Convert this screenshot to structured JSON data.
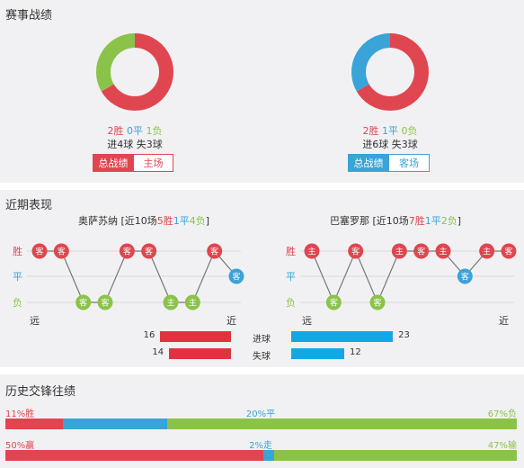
{
  "colors": {
    "win": "#e04650",
    "draw": "#3aa3d8",
    "loss": "#8bc34a",
    "panel": "#f1f1f3"
  },
  "season": {
    "title": "赛事战绩",
    "left": {
      "record": {
        "win": "2胜",
        "draw": "0平",
        "loss": "1负"
      },
      "goals": "进4球 失3球",
      "tabs": [
        {
          "label": "总战绩",
          "active": true
        },
        {
          "label": "主场",
          "active": false
        }
      ],
      "donut": {
        "win": 2,
        "draw": 0,
        "loss": 1
      }
    },
    "right": {
      "record": {
        "win": "2胜",
        "draw": "1平",
        "loss": "0负"
      },
      "goals": "进6球 失3球",
      "tabs": [
        {
          "label": "总战绩",
          "active": true
        },
        {
          "label": "客场",
          "active": false
        }
      ],
      "donut": {
        "win": 2,
        "draw": 1,
        "loss": 0
      }
    }
  },
  "recent": {
    "title": "近期表现",
    "left": {
      "name": "奥萨苏纳",
      "prefix": "[近10场",
      "w": "5胜",
      "d": "1平",
      "l": "4负",
      "suffix": "]",
      "results": [
        [
          "W",
          "客"
        ],
        [
          "W",
          "客"
        ],
        [
          "L",
          "客"
        ],
        [
          "L",
          "客"
        ],
        [
          "W",
          "客"
        ],
        [
          "W",
          "客"
        ],
        [
          "L",
          "主"
        ],
        [
          "L",
          "主"
        ],
        [
          "W",
          "客"
        ],
        [
          "D",
          "客"
        ]
      ]
    },
    "right": {
      "name": "巴塞罗那",
      "prefix": "[近10场",
      "w": "7胜",
      "d": "1平",
      "l": "2负",
      "suffix": "]",
      "results": [
        [
          "W",
          "主"
        ],
        [
          "L",
          "客"
        ],
        [
          "W",
          "客"
        ],
        [
          "L",
          "客"
        ],
        [
          "W",
          "主"
        ],
        [
          "W",
          "客"
        ],
        [
          "W",
          "主"
        ],
        [
          "D",
          "客"
        ],
        [
          "W",
          "主"
        ],
        [
          "W",
          "客"
        ]
      ]
    },
    "axis": {
      "win": "胜",
      "draw": "平",
      "loss": "负",
      "far": "远",
      "near": "近"
    },
    "goals": {
      "scored_label": "进球",
      "conceded_label": "失球",
      "left_scored": 16,
      "left_conceded": 14,
      "right_scored": 23,
      "right_conceded": 12
    }
  },
  "history": {
    "title": "历史交锋往绩",
    "row1": {
      "a": "11%胜",
      "b": "20%平",
      "c": "67%负",
      "pa": 11,
      "pb": 20,
      "pc": 67
    },
    "row2": {
      "a": "50%赢",
      "b": "2%走",
      "c": "47%输",
      "pa": 50,
      "pb": 2,
      "pc": 47
    }
  }
}
